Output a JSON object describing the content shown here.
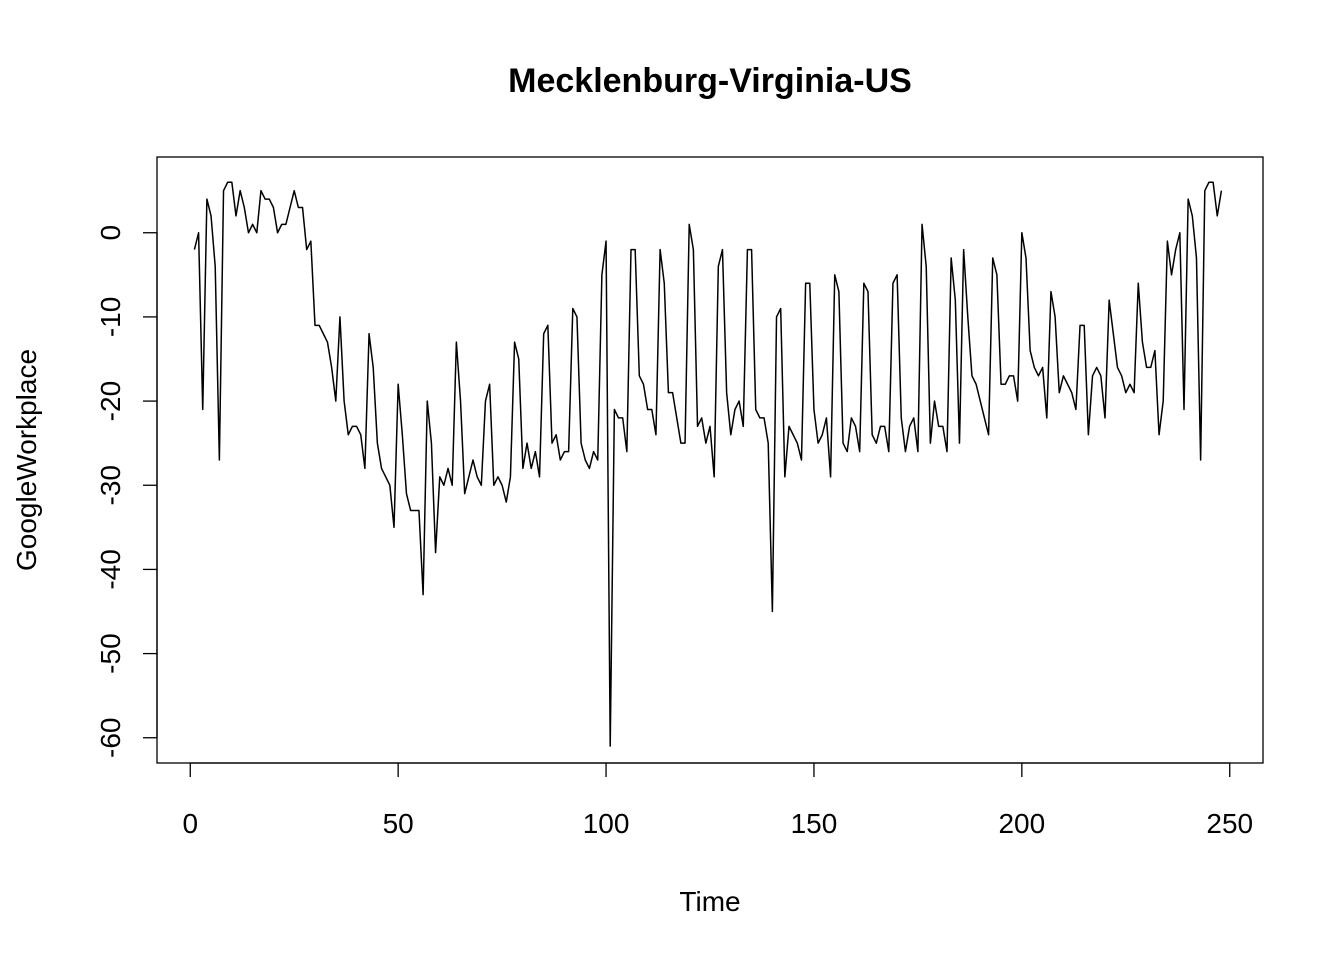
{
  "chart_data": {
    "type": "line",
    "title": "Mecklenburg-Virginia-US",
    "xlabel": "Time",
    "ylabel": "GoogleWorkplace",
    "xlim": [
      -8,
      258
    ],
    "ylim": [
      -63,
      9
    ],
    "x_ticks": [
      0,
      50,
      100,
      150,
      200,
      250
    ],
    "y_ticks": [
      -60,
      -50,
      -40,
      -30,
      -20,
      -10,
      0
    ],
    "grid": false,
    "legend": "none",
    "line_color": "#000000",
    "series": [
      {
        "x": [
          1,
          2,
          3,
          4,
          5,
          6,
          7,
          8,
          9,
          10,
          11,
          12,
          13,
          14,
          15,
          16,
          17,
          18,
          19,
          20,
          21,
          22,
          23,
          24,
          25,
          26,
          27,
          28,
          29,
          30,
          31,
          32,
          33,
          34,
          35,
          36,
          37,
          38,
          39,
          40,
          41,
          42,
          43,
          44,
          45,
          46,
          47,
          48,
          49,
          50,
          51,
          52,
          53,
          54,
          55,
          56,
          57,
          58,
          59,
          60,
          61,
          62,
          63,
          64,
          65,
          66,
          67,
          68,
          69,
          70,
          71,
          72,
          73,
          74,
          75,
          76,
          77,
          78,
          79,
          80,
          81,
          82,
          83,
          84,
          85,
          86,
          87,
          88,
          89,
          90,
          91,
          92,
          93,
          94,
          95,
          96,
          97,
          98,
          99,
          100,
          101,
          102,
          103,
          104,
          105,
          106,
          107,
          108,
          109,
          110,
          111,
          112,
          113,
          114,
          115,
          116,
          117,
          118,
          119,
          120,
          121,
          122,
          123,
          124,
          125,
          126,
          127,
          128,
          129,
          130,
          131,
          132,
          133,
          134,
          135,
          136,
          137,
          138,
          139,
          140,
          141,
          142,
          143,
          144,
          145,
          146,
          147,
          148,
          149,
          150,
          151,
          152,
          153,
          154,
          155,
          156,
          157,
          158,
          159,
          160,
          161,
          162,
          163,
          164,
          165,
          166,
          167,
          168,
          169,
          170,
          171,
          172,
          173,
          174,
          175,
          176,
          177,
          178,
          179,
          180,
          181,
          182,
          183,
          184,
          185,
          186,
          187,
          188,
          189,
          190,
          191,
          192,
          193,
          194,
          195,
          196,
          197,
          198,
          199,
          200,
          201,
          202,
          203,
          204,
          205,
          206,
          207,
          208,
          209,
          210,
          211,
          212,
          213,
          214,
          215,
          216,
          217,
          218,
          219,
          220,
          221,
          222,
          223,
          224,
          225,
          226,
          227,
          228,
          229,
          230,
          231,
          232,
          233,
          234,
          235,
          236,
          237,
          238,
          239,
          240,
          241,
          242,
          243,
          244,
          245,
          246,
          247,
          248
        ],
        "y": [
          -2,
          0,
          -21,
          4,
          2,
          -4,
          -27,
          5,
          6,
          6,
          2,
          5,
          3,
          0,
          1,
          0,
          5,
          4,
          4,
          3,
          0,
          1,
          1,
          3,
          5,
          3,
          3,
          -2,
          -1,
          -11,
          -11,
          -12,
          -13,
          -16,
          -20,
          -10,
          -20,
          -24,
          -23,
          -23,
          -24,
          -28,
          -12,
          -16,
          -25,
          -28,
          -29,
          -30,
          -35,
          -18,
          -24,
          -31,
          -33,
          -33,
          -33,
          -43,
          -20,
          -25,
          -38,
          -29,
          -30,
          -28,
          -30,
          -13,
          -20,
          -31,
          -29,
          -27,
          -29,
          -30,
          -20,
          -18,
          -30,
          -29,
          -30,
          -32,
          -29,
          -13,
          -15,
          -28,
          -25,
          -28,
          -26,
          -29,
          -12,
          -11,
          -25,
          -24,
          -27,
          -26,
          -26,
          -9,
          -10,
          -25,
          -27,
          -28,
          -26,
          -27,
          -5,
          -1,
          -61,
          -21,
          -22,
          -22,
          -26,
          -2,
          -2,
          -17,
          -18,
          -21,
          -21,
          -24,
          -2,
          -6,
          -19,
          -19,
          -22,
          -25,
          -25,
          1,
          -2,
          -23,
          -22,
          -25,
          -23,
          -29,
          -4,
          -2,
          -19,
          -24,
          -21,
          -20,
          -23,
          -2,
          -2,
          -21,
          -22,
          -22,
          -25,
          -45,
          -10,
          -9,
          -29,
          -23,
          -24,
          -25,
          -27,
          -6,
          -6,
          -21,
          -25,
          -24,
          -22,
          -29,
          -5,
          -7,
          -25,
          -26,
          -22,
          -23,
          -26,
          -6,
          -7,
          -24,
          -25,
          -23,
          -23,
          -26,
          -6,
          -5,
          -22,
          -26,
          -23,
          -22,
          -26,
          1,
          -4,
          -25,
          -20,
          -23,
          -23,
          -26,
          -3,
          -8,
          -25,
          -2,
          -10,
          -17,
          -18,
          -20,
          -22,
          -24,
          -3,
          -5,
          -18,
          -18,
          -17,
          -17,
          -20,
          0,
          -3,
          -14,
          -16,
          -17,
          -16,
          -22,
          -7,
          -10,
          -19,
          -17,
          -18,
          -19,
          -21,
          -11,
          -11,
          -24,
          -17,
          -16,
          -17,
          -22,
          -8,
          -12,
          -16,
          -17,
          -19,
          -18,
          -19,
          -6,
          -13,
          -16,
          -16,
          -14,
          -24,
          -20,
          -1,
          -5,
          -2,
          0,
          -21,
          4,
          2,
          -3,
          -27,
          5,
          6,
          6,
          2,
          5
        ]
      }
    ]
  }
}
